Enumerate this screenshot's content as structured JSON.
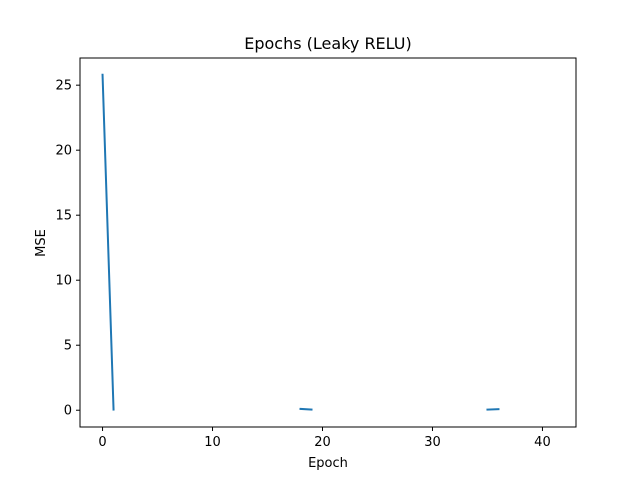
{
  "chart_data": {
    "type": "line",
    "title": "Epochs (Leaky RELU)",
    "xlabel": "Epoch",
    "ylabel": "MSE",
    "xlim": [
      -2.05,
      43.05
    ],
    "ylim": [
      -1.29,
      27.09
    ],
    "xticks": [
      0,
      10,
      20,
      30,
      40
    ],
    "yticks": [
      0,
      5,
      10,
      15,
      20,
      25
    ],
    "grid": false,
    "color": "#1f77b4",
    "series": [
      {
        "segments": [
          [
            [
              0,
              25.8
            ],
            [
              1,
              0.05
            ]
          ],
          [
            [
              18,
              0.1
            ],
            [
              19,
              0.05
            ]
          ],
          [
            [
              35,
              0.05
            ],
            [
              36,
              0.08
            ]
          ]
        ]
      }
    ]
  }
}
